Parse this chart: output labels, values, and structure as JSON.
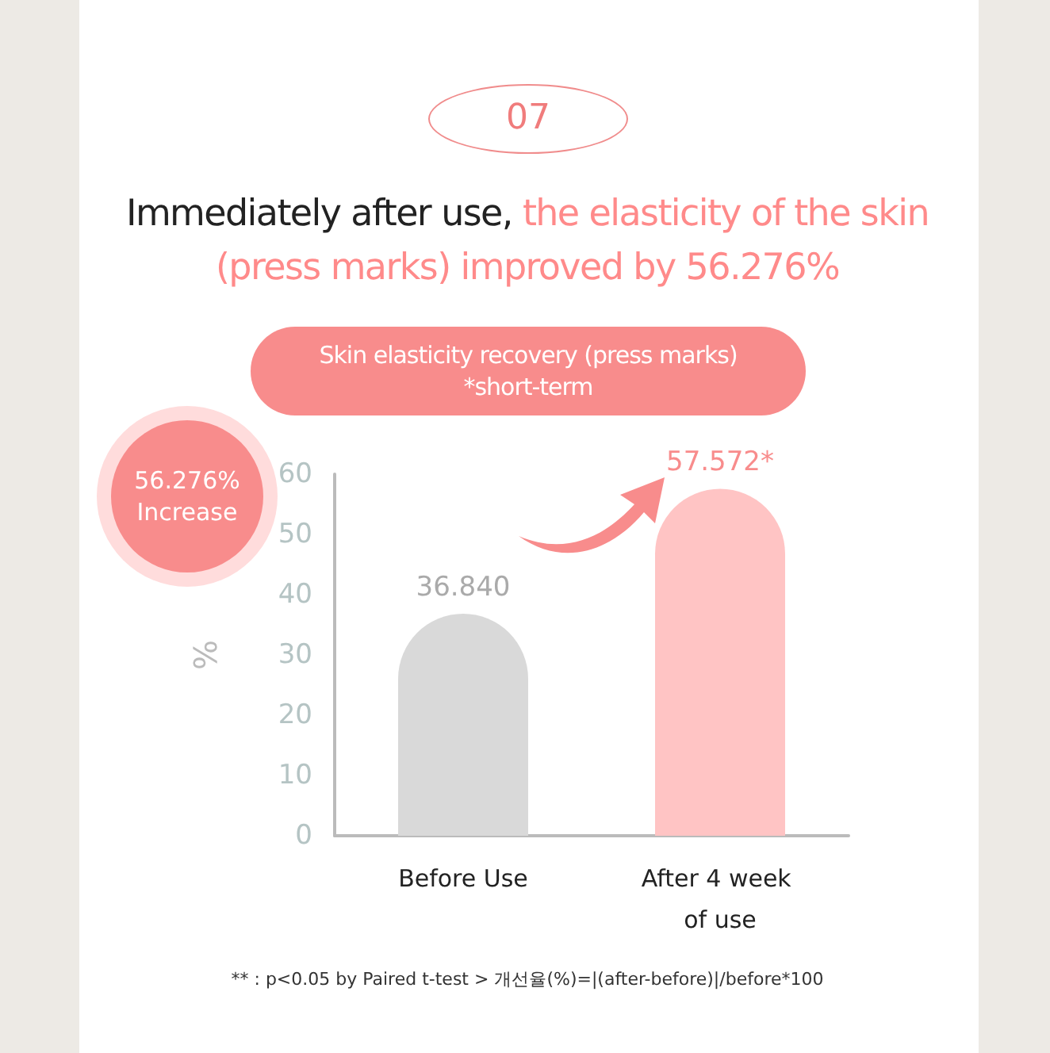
{
  "chart_data": {
    "type": "bar",
    "title": "Immediately after use,",
    "subtitle": "the elasticity of the skin (press marks) improved by 56.276%",
    "ylabel": "%",
    "annotations": [
      "07",
      "Skin elasticity recovery (press marks)\n*short-term",
      "56.276%\nIncrease",
      "** : p<0.05 by Paired t-test > 개선율(%)=|(after-before)|/before*100"
    ],
    "categories": [
      "Before Use",
      "After 4 week of use"
    ],
    "values": [
      36.84,
      57.572
    ],
    "colors": [
      "#d9d9d9",
      "#ffc4c4"
    ],
    "value_labels": [
      "36.840",
      "57.572*"
    ],
    "ylim": [
      0,
      60
    ],
    "yticks": [
      0,
      10,
      20,
      30,
      40,
      50,
      60
    ],
    "grid": false
  }
}
